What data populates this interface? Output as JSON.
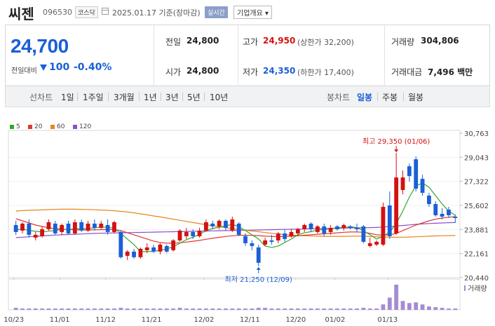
{
  "header": {
    "name": "씨젠",
    "code": "096530",
    "market": "코스닥",
    "date": "2025.01.17 기준(장마감)",
    "realtime": "실시간",
    "company_info": "기업개요 ▾"
  },
  "quote": {
    "price": "24,700",
    "change_label": "전일대비",
    "change": "100",
    "change_pct": "-0.40%",
    "prev_label": "전일",
    "prev": "24,800",
    "open_label": "시가",
    "open": "24,800",
    "high_label": "고가",
    "high": "24,950",
    "upper_limit": "(상한가 32,200)",
    "low_label": "저가",
    "low": "24,350",
    "lower_limit": "(하한가 17,400)",
    "volume_label": "거래량",
    "volume": "304,806",
    "amount_label": "거래대금",
    "amount": "7,496 백만"
  },
  "periods": {
    "line_label": "선차트",
    "line_items": [
      "1일",
      "1주일",
      "3개월",
      "1년",
      "3년",
      "5년",
      "10년"
    ],
    "candle_label": "봉차트",
    "candle_items": [
      "일봉",
      "주봉",
      "월봉"
    ],
    "active_candle": "일봉"
  },
  "colors": {
    "up": "#d51010",
    "down": "#1a5fd6",
    "ma5": "#2ea82e",
    "ma20": "#e0382e",
    "ma60": "#e6861e",
    "ma120": "#8a4fc8",
    "volume": "#a58bd2"
  },
  "chart_data": {
    "type": "candlestick",
    "legend": [
      "5",
      "20",
      "60",
      "120"
    ],
    "y_ticks": [
      "30,763",
      "29,043",
      "27,322",
      "25,602",
      "23,881",
      "22,161",
      "20,440"
    ],
    "ylim": [
      20440,
      30763
    ],
    "x_ticks": [
      "10/23",
      "11/01",
      "11/12",
      "11/21",
      "12/02",
      "12/11",
      "12/20",
      "01/02",
      "01/13"
    ],
    "annotations": {
      "high": "최고 29,350 (01/06)",
      "low": "최저 21,250 (12/09)"
    },
    "volume_label": "거래량",
    "candles": [
      {
        "o": 24200,
        "c": 23700,
        "h": 24500,
        "l": 23500
      },
      {
        "o": 23800,
        "c": 24300,
        "h": 24400,
        "l": 23600
      },
      {
        "o": 24300,
        "c": 23500,
        "h": 24600,
        "l": 23300
      },
      {
        "o": 23300,
        "c": 23500,
        "h": 23700,
        "l": 23100
      },
      {
        "o": 23400,
        "c": 23900,
        "h": 24100,
        "l": 23300
      },
      {
        "o": 23900,
        "c": 24400,
        "h": 24600,
        "l": 23800
      },
      {
        "o": 24300,
        "c": 23600,
        "h": 24500,
        "l": 23500
      },
      {
        "o": 23700,
        "c": 24200,
        "h": 24300,
        "l": 23500
      },
      {
        "o": 24300,
        "c": 23600,
        "h": 24500,
        "l": 23500
      },
      {
        "o": 23600,
        "c": 24400,
        "h": 24600,
        "l": 23500
      },
      {
        "o": 24400,
        "c": 23800,
        "h": 24600,
        "l": 23700
      },
      {
        "o": 23800,
        "c": 24300,
        "h": 24500,
        "l": 23700
      },
      {
        "o": 24300,
        "c": 24000,
        "h": 24600,
        "l": 23800
      },
      {
        "o": 24000,
        "c": 24300,
        "h": 24500,
        "l": 23900
      },
      {
        "o": 24200,
        "c": 23700,
        "h": 24600,
        "l": 23500
      },
      {
        "o": 23700,
        "c": 24400,
        "h": 24500,
        "l": 23600
      },
      {
        "o": 23700,
        "c": 21900,
        "h": 23800,
        "l": 21800
      },
      {
        "o": 22000,
        "c": 22300,
        "h": 22400,
        "l": 21700
      },
      {
        "o": 22300,
        "c": 21900,
        "h": 22500,
        "l": 21800
      },
      {
        "o": 21900,
        "c": 22500,
        "h": 22600,
        "l": 21800
      },
      {
        "o": 22400,
        "c": 22600,
        "h": 22900,
        "l": 22200
      },
      {
        "o": 22600,
        "c": 22300,
        "h": 22800,
        "l": 22200
      },
      {
        "o": 22300,
        "c": 22800,
        "h": 22900,
        "l": 22100
      },
      {
        "o": 22700,
        "c": 22300,
        "h": 22800,
        "l": 22200
      },
      {
        "o": 22400,
        "c": 23100,
        "h": 23200,
        "l": 22300
      },
      {
        "o": 23100,
        "c": 23800,
        "h": 23900,
        "l": 23000
      },
      {
        "o": 23400,
        "c": 23700,
        "h": 24000,
        "l": 23200
      },
      {
        "o": 23700,
        "c": 23400,
        "h": 23900,
        "l": 23200
      },
      {
        "o": 23400,
        "c": 23800,
        "h": 24000,
        "l": 23300
      },
      {
        "o": 23800,
        "c": 24400,
        "h": 24600,
        "l": 23700
      },
      {
        "o": 24300,
        "c": 24100,
        "h": 24500,
        "l": 23900
      },
      {
        "o": 24100,
        "c": 24500,
        "h": 24600,
        "l": 23900
      },
      {
        "o": 24500,
        "c": 24000,
        "h": 24600,
        "l": 23800
      },
      {
        "o": 23800,
        "c": 24600,
        "h": 24800,
        "l": 23700
      },
      {
        "o": 24300,
        "c": 23500,
        "h": 24400,
        "l": 23400
      },
      {
        "o": 23400,
        "c": 22900,
        "h": 23600,
        "l": 22700
      },
      {
        "o": 22900,
        "c": 22700,
        "h": 23100,
        "l": 22400
      },
      {
        "o": 22600,
        "c": 21500,
        "h": 22800,
        "l": 21250
      },
      {
        "o": 22800,
        "c": 23100,
        "h": 23300,
        "l": 22700
      },
      {
        "o": 23100,
        "c": 23000,
        "h": 23500,
        "l": 22800
      },
      {
        "o": 23100,
        "c": 23600,
        "h": 23700,
        "l": 22900
      },
      {
        "o": 23600,
        "c": 23200,
        "h": 23900,
        "l": 23000
      },
      {
        "o": 23400,
        "c": 23700,
        "h": 23900,
        "l": 23300
      },
      {
        "o": 23600,
        "c": 23900,
        "h": 24000,
        "l": 23400
      },
      {
        "o": 23900,
        "c": 24200,
        "h": 24300,
        "l": 23700
      },
      {
        "o": 24300,
        "c": 23900,
        "h": 24400,
        "l": 23700
      },
      {
        "o": 23700,
        "c": 24100,
        "h": 24200,
        "l": 23600
      },
      {
        "o": 24100,
        "c": 23600,
        "h": 24300,
        "l": 23400
      },
      {
        "o": 23700,
        "c": 24000,
        "h": 24200,
        "l": 23500
      },
      {
        "o": 24100,
        "c": 23900,
        "h": 24200,
        "l": 23800
      },
      {
        "o": 24000,
        "c": 24200,
        "h": 24300,
        "l": 23800
      },
      {
        "o": 24100,
        "c": 24000,
        "h": 24200,
        "l": 23900
      },
      {
        "o": 24000,
        "c": 23900,
        "h": 24300,
        "l": 23700
      },
      {
        "o": 24100,
        "c": 23000,
        "h": 24200,
        "l": 22900
      },
      {
        "o": 22700,
        "c": 22900,
        "h": 23300,
        "l": 22600
      },
      {
        "o": 22800,
        "c": 23000,
        "h": 23100,
        "l": 22700
      },
      {
        "o": 22800,
        "c": 25500,
        "h": 25800,
        "l": 22700
      },
      {
        "o": 25600,
        "c": 23400,
        "h": 26600,
        "l": 23200
      },
      {
        "o": 23600,
        "c": 27600,
        "h": 29350,
        "l": 23500
      },
      {
        "o": 26700,
        "c": 27600,
        "h": 28100,
        "l": 26400
      },
      {
        "o": 28400,
        "c": 27700,
        "h": 28600,
        "l": 27300
      },
      {
        "o": 28900,
        "c": 26800,
        "h": 29100,
        "l": 26600
      },
      {
        "o": 27500,
        "c": 26500,
        "h": 27800,
        "l": 26300
      },
      {
        "o": 26300,
        "c": 25700,
        "h": 26500,
        "l": 25500
      },
      {
        "o": 25700,
        "c": 24900,
        "h": 25900,
        "l": 24800
      },
      {
        "o": 25000,
        "c": 24800,
        "h": 25400,
        "l": 24600
      },
      {
        "o": 25300,
        "c": 24900,
        "h": 25500,
        "l": 24700
      },
      {
        "o": 24800,
        "c": 24700,
        "h": 24950,
        "l": 24350
      }
    ],
    "volumes": [
      3,
      2,
      2,
      2,
      2,
      2,
      2,
      2,
      2,
      2,
      2,
      2,
      2,
      2,
      2,
      2,
      3,
      2,
      2,
      2,
      2,
      2,
      2,
      2,
      2,
      3,
      2,
      2,
      2,
      2,
      2,
      2,
      2,
      2,
      2,
      2,
      2,
      3,
      3,
      2,
      2,
      2,
      2,
      2,
      2,
      2,
      2,
      2,
      2,
      2,
      2,
      2,
      2,
      3,
      2,
      2,
      8,
      18,
      37,
      13,
      10,
      11,
      8,
      5,
      4,
      3,
      2,
      2
    ],
    "ma5": [
      23850,
      23920,
      23800,
      23750,
      23700,
      23760,
      23800,
      23900,
      23860,
      23950,
      23920,
      23960,
      24000,
      24060,
      24040,
      23980,
      23600,
      23200,
      22800,
      22300,
      22300,
      22320,
      22400,
      22500,
      22640,
      22900,
      23150,
      23330,
      23520,
      23800,
      23950,
      24050,
      24150,
      24250,
      24080,
      23800,
      23500,
      23200,
      22700,
      22600,
      22700,
      22950,
      23200,
      23500,
      23650,
      23720,
      23850,
      23880,
      23950,
      24000,
      24020,
      24080,
      24020,
      23800,
      23500,
      23200,
      23400,
      23700,
      24300,
      25200,
      26200,
      27000,
      27200,
      26900,
      26300,
      25700,
      25200,
      24900
    ],
    "ma20": [
      24650,
      24500,
      24350,
      24200,
      24100,
      24000,
      23950,
      23900,
      23880,
      23860,
      23850,
      23850,
      23860,
      23870,
      23880,
      23880,
      23800,
      23650,
      23500,
      23350,
      23200,
      23050,
      22950,
      22900,
      22900,
      22930,
      22980,
      23040,
      23100,
      23180,
      23250,
      23320,
      23380,
      23430,
      23460,
      23470,
      23460,
      23440,
      23400,
      23380,
      23370,
      23380,
      23400,
      23430,
      23470,
      23500,
      23540,
      23570,
      23600,
      23640,
      23680,
      23700,
      23700,
      23680,
      23600,
      23500,
      23480,
      23500,
      23600,
      23800,
      24000,
      24200,
      24350,
      24500,
      24620,
      24700,
      24760,
      24800
    ],
    "ma60": [
      25200,
      25230,
      25250,
      25270,
      25280,
      25300,
      25320,
      25330,
      25330,
      25330,
      25320,
      25310,
      25290,
      25270,
      25250,
      25220,
      25180,
      25130,
      25070,
      25000,
      24930,
      24850,
      24780,
      24700,
      24620,
      24540,
      24460,
      24380,
      24300,
      24220,
      24150,
      24080,
      24010,
      23950,
      23890,
      23830,
      23770,
      23720,
      23660,
      23610,
      23560,
      23520,
      23480,
      23450,
      23430,
      23410,
      23400,
      23390,
      23390,
      23390,
      23390,
      23400,
      23400,
      23400,
      23380,
      23360,
      23340,
      23330,
      23320,
      23330,
      23340,
      23360,
      23380,
      23400,
      23420,
      23430,
      23440,
      23450
    ],
    "ma120": [
      23300,
      23330,
      23360,
      23390,
      23420,
      23450,
      23480,
      23500,
      23520,
      23540,
      23560,
      23580,
      23600,
      23610,
      23620,
      23630,
      23640,
      23650,
      23660,
      23670,
      23680,
      23690,
      23700,
      23710,
      23720,
      23730,
      23740,
      23750,
      23760,
      23770,
      23780,
      23790,
      23800,
      23810,
      23820,
      23830,
      23840,
      23850,
      23860,
      23870,
      23880,
      23890,
      23900,
      23910,
      23920,
      23930,
      23940,
      23950,
      23960,
      23970,
      23980,
      23990,
      24000,
      24010,
      24020,
      24030,
      24060,
      24090,
      24130,
      24170,
      24210,
      24250,
      24280,
      24310,
      24330,
      24350,
      24370,
      24380
    ]
  }
}
